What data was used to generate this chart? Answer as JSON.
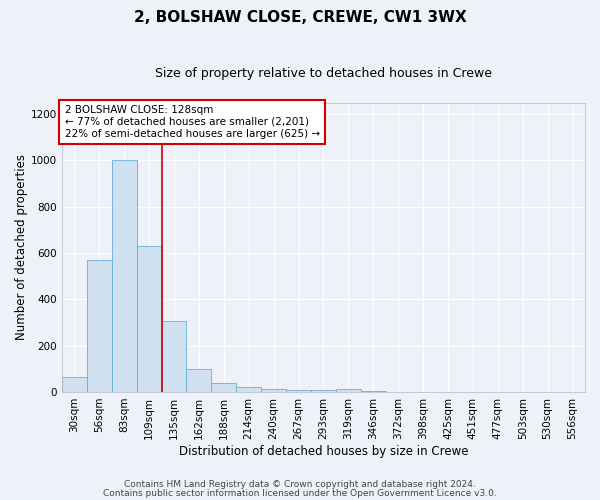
{
  "title": "2, BOLSHAW CLOSE, CREWE, CW1 3WX",
  "subtitle": "Size of property relative to detached houses in Crewe",
  "xlabel": "Distribution of detached houses by size in Crewe",
  "ylabel": "Number of detached properties",
  "bar_color": "#cfe0f0",
  "bar_edge_color": "#6aaed6",
  "categories": [
    "30sqm",
    "56sqm",
    "83sqm",
    "109sqm",
    "135sqm",
    "162sqm",
    "188sqm",
    "214sqm",
    "240sqm",
    "267sqm",
    "293sqm",
    "319sqm",
    "346sqm",
    "372sqm",
    "398sqm",
    "425sqm",
    "451sqm",
    "477sqm",
    "503sqm",
    "530sqm",
    "556sqm"
  ],
  "values": [
    65,
    570,
    1000,
    630,
    305,
    98,
    38,
    22,
    12,
    10,
    10,
    12,
    2,
    0,
    0,
    0,
    0,
    0,
    0,
    0,
    0
  ],
  "red_line_index": 4,
  "property_label": "2 BOLSHAW CLOSE: 128sqm",
  "annotation_line1": "← 77% of detached houses are smaller (2,201)",
  "annotation_line2": "22% of semi-detached houses are larger (625) →",
  "annotation_box_color": "#ffffff",
  "annotation_box_edge": "#cc0000",
  "red_line_color": "#cc0000",
  "ylim": [
    0,
    1250
  ],
  "yticks": [
    0,
    200,
    400,
    600,
    800,
    1000,
    1200
  ],
  "footer1": "Contains HM Land Registry data © Crown copyright and database right 2024.",
  "footer2": "Contains public sector information licensed under the Open Government Licence v3.0.",
  "background_color": "#eef2f8",
  "grid_color": "#ffffff",
  "title_fontsize": 11,
  "subtitle_fontsize": 9,
  "xlabel_fontsize": 8.5,
  "ylabel_fontsize": 8.5,
  "tick_fontsize": 7.5,
  "footer_fontsize": 6.5
}
